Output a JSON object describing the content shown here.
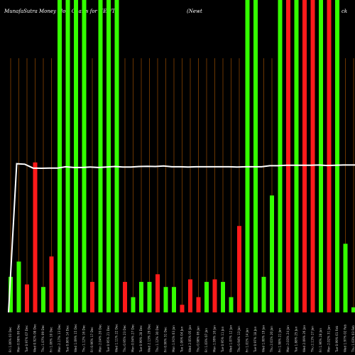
{
  "title_left": "MunafaSutra  Money Flow  Charts for NEWTZ",
  "title_mid": "(Newt",
  "title_right": "ck",
  "chart_data": {
    "type": "bar",
    "title": "MunafaSutra  Money Flow  Charts for NEWTZ",
    "ylim": [
      0,
      100
    ],
    "categories": [
      "Fri 1.06% 03 Dec",
      "Mon 0.98% 06 Dec",
      "Tue 0.97% 07 Dec",
      "Wed 0.92% 08 Dec",
      "Thu 1.07% 09 Dec",
      "Fri 1.06% 10 Dec",
      "Mon 2.17% 13 Dec",
      "Tue 0.86% 14 Dec",
      "Wed 1.09% 15 Dec",
      "Thu 1.12% 16 Dec",
      "Fri 0.96% 17 Dec",
      "Mon 2.04% 20 Dec",
      "Tue 0.95% 21 Dec",
      "Wed 1.11% 22 Dec",
      "Thu 0.95% 23 Dec",
      "Mon 0.94% 27 Dec",
      "Tue 0.99% 28 Dec",
      "Wed 2.13% 29 Dec",
      "Thu 1.12% 30 Dec",
      "Fri 0.96% 31 Dec",
      "Mon 1.91% 03 Jan",
      "Tue 1.06% 04 Jan",
      "Wed 2.05% 05 Jan",
      "Thu 0.98% 06 Jan",
      "Fri 1.03% 07 Jan",
      "Mon 1.99% 10 Jan",
      "Tue 0.95% 11 Jan",
      "Wed 1.07% 12 Jan",
      "Thu 0.94% 13 Jan",
      "Fri 1.01% 14 Jan",
      "Tue 0.97% 18 Jan",
      "Wed 1.00% 19 Jan",
      "Thu 2.01% 20 Jan",
      "Fri 1.98% 21 Jan",
      "Mon 2.03% 24 Jan",
      "Tue 1.88% 25 Jan",
      "Wed 2.09% 26 Jan",
      "Thu 2.11% 27 Jan",
      "Fri 1.96% 28 Jan",
      "Mon 2.02% 31 Jan",
      "Tue 0.99% 01 Feb",
      "Wed 1.97% 02 Feb",
      "Thu 1.03% 03 Feb",
      "Fri 0.97% 04 Feb"
    ],
    "values": [
      14,
      20,
      11,
      59,
      10,
      22,
      100,
      100,
      100,
      100,
      12,
      100,
      100,
      100,
      12,
      6,
      12,
      12,
      15,
      10,
      10,
      3,
      13,
      6,
      12,
      13,
      12,
      6,
      34,
      100,
      100,
      14,
      46,
      100,
      100,
      100,
      100,
      100,
      100,
      100,
      100,
      27,
      2,
      100
    ],
    "colors": [
      "green",
      "green",
      "red",
      "red",
      "green",
      "red",
      "green",
      "green",
      "green",
      "green",
      "red",
      "green",
      "green",
      "green",
      "red",
      "green",
      "green",
      "green",
      "red",
      "green",
      "green",
      "red",
      "red",
      "red",
      "green",
      "red",
      "green",
      "green",
      "red",
      "green",
      "green",
      "green",
      "green",
      "green",
      "red",
      "green",
      "red",
      "red",
      "green",
      "red",
      "green",
      "green",
      "green",
      "green"
    ],
    "line_values": [
      0,
      58.5,
      58.3,
      56.8,
      56.7,
      56.8,
      56.8,
      57.3,
      57.0,
      57.0,
      57.2,
      57.0,
      57.2,
      57.4,
      57.2,
      57.2,
      57.4,
      57.5,
      57.4,
      57.6,
      57.3,
      57.3,
      57.2,
      57.3,
      57.3,
      57.3,
      57.3,
      57.3,
      57.2,
      57.3,
      57.3,
      57.3,
      57.7,
      57.7,
      57.9,
      57.9,
      57.9,
      57.9,
      58.0,
      57.8,
      57.9,
      58.0,
      58.0,
      58.0
    ],
    "grid": true,
    "palette": {
      "background": "#000000",
      "green": "#33ff00",
      "red": "#ff1a1a",
      "grid": "#b35900",
      "line": "#ffffff",
      "label": "#cccccc"
    }
  }
}
